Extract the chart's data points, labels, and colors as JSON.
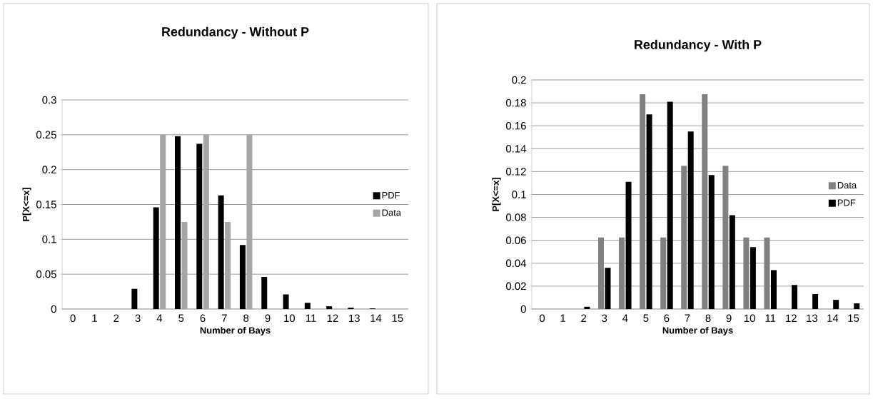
{
  "chart_data": [
    {
      "type": "bar",
      "title": "Redundancy - Without P",
      "xlabel": "Number of Bays",
      "ylabel": "P[X<=x]",
      "categories": [
        "0",
        "1",
        "2",
        "3",
        "4",
        "5",
        "6",
        "7",
        "8",
        "9",
        "10",
        "11",
        "12",
        "13",
        "14",
        "15"
      ],
      "series": [
        {
          "name": "PDF",
          "color": "#000000",
          "values": [
            0,
            0,
            0,
            0.029,
            0.146,
            0.248,
            0.237,
            0.163,
            0.092,
            0.046,
            0.021,
            0.009,
            0.004,
            0.002,
            0.001,
            0
          ]
        },
        {
          "name": "Data",
          "color": "#a6a6a6",
          "values": [
            0,
            0,
            0,
            0,
            0.25,
            0.125,
            0.25,
            0.125,
            0.25,
            0,
            0,
            0,
            0,
            0,
            0,
            0
          ]
        }
      ],
      "ylim": [
        0,
        0.3
      ],
      "yticks": [
        0,
        0.05,
        0.1,
        0.15,
        0.2,
        0.25,
        0.3
      ],
      "grid": "y",
      "legend": "right"
    },
    {
      "type": "bar",
      "title": "Redundancy - With P",
      "xlabel": "Number of Bays",
      "ylabel": "P[X<=x]",
      "categories": [
        "0",
        "1",
        "2",
        "3",
        "4",
        "5",
        "6",
        "7",
        "8",
        "9",
        "10",
        "11",
        "12",
        "13",
        "14",
        "15"
      ],
      "series": [
        {
          "name": "Data",
          "color": "#808080",
          "values": [
            0,
            0,
            0,
            0.0625,
            0.0625,
            0.1875,
            0.0625,
            0.125,
            0.1875,
            0.125,
            0.0625,
            0.0625,
            0,
            0,
            0,
            0
          ]
        },
        {
          "name": "PDF",
          "color": "#000000",
          "values": [
            0,
            0,
            0.002,
            0.036,
            0.111,
            0.17,
            0.181,
            0.155,
            0.117,
            0.082,
            0.054,
            0.034,
            0.021,
            0.013,
            0.008,
            0.005
          ]
        }
      ],
      "ylim": [
        0,
        0.2
      ],
      "yticks": [
        0,
        0.02,
        0.04,
        0.06,
        0.08,
        0.1,
        0.12,
        0.14,
        0.16,
        0.18,
        0.2
      ],
      "grid": "y",
      "legend": "right"
    }
  ]
}
